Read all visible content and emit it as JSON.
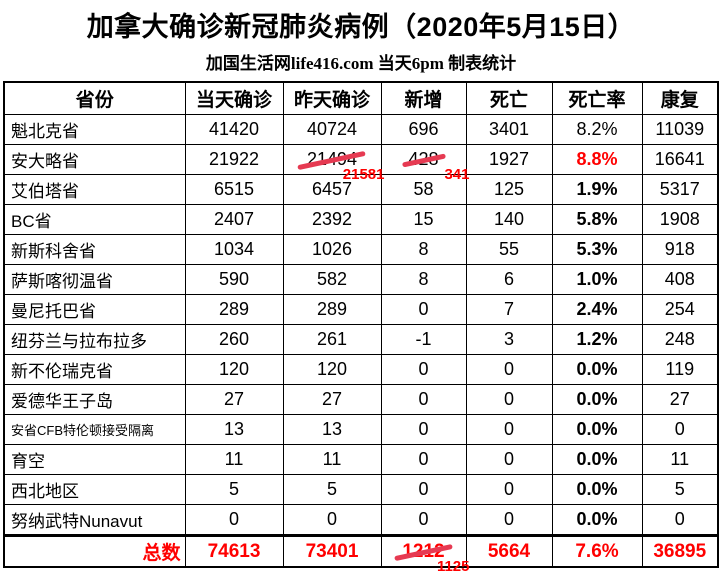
{
  "chart_data": {
    "type": "table",
    "title": "加拿大确诊新冠肺炎病例（2020年5月15日）",
    "subtitle": "加国生活网life416.com 当天6pm 制表统计",
    "columns": [
      "省份",
      "当天确诊",
      "昨天确诊",
      "新增",
      "死亡",
      "死亡率",
      "康复"
    ],
    "rows": [
      {
        "province": "魁北克省",
        "today": "41420",
        "yesterday": "40724",
        "new": "696",
        "deaths": "3401",
        "rate": "8.2%",
        "recovered": "11039",
        "rate_regular": true
      },
      {
        "province": "安大略省",
        "today": "21922",
        "yesterday": "21494",
        "yesterday_correction": "21581",
        "new": "428",
        "new_correction": "341",
        "deaths": "1927",
        "rate": "8.8%",
        "rate_red": true,
        "recovered": "16641"
      },
      {
        "province": "艾伯塔省",
        "today": "6515",
        "yesterday": "6457",
        "new": "58",
        "deaths": "125",
        "rate": "1.9%",
        "recovered": "5317"
      },
      {
        "province": "BC省",
        "today": "2407",
        "yesterday": "2392",
        "new": "15",
        "deaths": "140",
        "rate": "5.8%",
        "recovered": "1908"
      },
      {
        "province": "新斯科舍省",
        "today": "1034",
        "yesterday": "1026",
        "new": "8",
        "deaths": "55",
        "rate": "5.3%",
        "recovered": "918"
      },
      {
        "province": "萨斯喀彻温省",
        "today": "590",
        "yesterday": "582",
        "new": "8",
        "deaths": "6",
        "rate": "1.0%",
        "recovered": "408"
      },
      {
        "province": "曼尼托巴省",
        "today": "289",
        "yesterday": "289",
        "new": "0",
        "deaths": "7",
        "rate": "2.4%",
        "recovered": "254"
      },
      {
        "province": "纽芬兰与拉布拉多",
        "today": "260",
        "yesterday": "261",
        "new": "-1",
        "deaths": "3",
        "rate": "1.2%",
        "recovered": "248"
      },
      {
        "province": "新不伦瑞克省",
        "today": "120",
        "yesterday": "120",
        "new": "0",
        "deaths": "0",
        "rate": "0.0%",
        "recovered": "119"
      },
      {
        "province": "爱德华王子岛",
        "today": "27",
        "yesterday": "27",
        "new": "0",
        "deaths": "0",
        "rate": "0.0%",
        "recovered": "27"
      },
      {
        "province": "安省CFB特伦顿接受隔离",
        "today": "13",
        "yesterday": "13",
        "new": "0",
        "deaths": "0",
        "rate": "0.0%",
        "recovered": "0",
        "small_font": true
      },
      {
        "province": "育空",
        "today": "11",
        "yesterday": "11",
        "new": "0",
        "deaths": "0",
        "rate": "0.0%",
        "recovered": "11"
      },
      {
        "province": "西北地区",
        "today": "5",
        "yesterday": "5",
        "new": "0",
        "deaths": "0",
        "rate": "0.0%",
        "recovered": "5"
      },
      {
        "province": "努纳武特Nunavut",
        "today": "0",
        "yesterday": "0",
        "new": "0",
        "deaths": "0",
        "rate": "0.0%",
        "recovered": "0"
      },
      {
        "province": "总数",
        "is_total": true,
        "today": "74613",
        "yesterday": "73401",
        "new": "1212",
        "new_correction": "1125",
        "deaths": "5664",
        "rate": "7.6%",
        "recovered": "36895"
      }
    ],
    "colors": {
      "text_black": "#000000",
      "correction_red": "#ff0000",
      "strike_red": "#e63a52",
      "border": "#000000",
      "background": "#ffffff"
    },
    "layout": {
      "grid": "full-borders",
      "header_bold": true,
      "total_row_red_bold": true
    }
  }
}
